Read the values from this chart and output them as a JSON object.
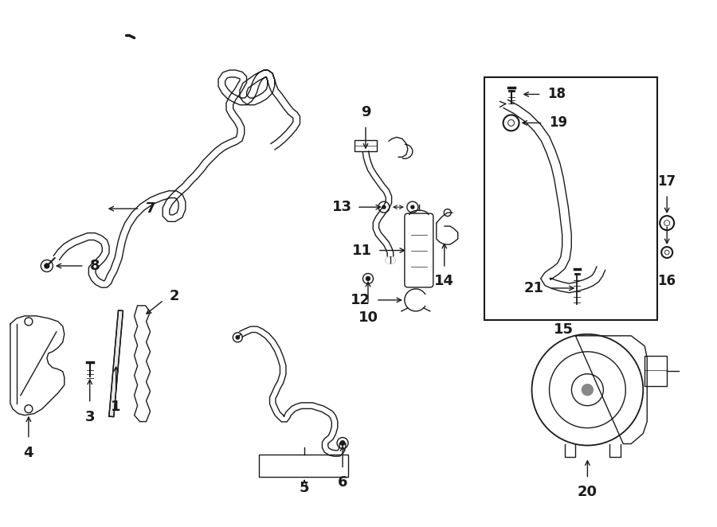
{
  "bg_color": "#ffffff",
  "line_color": "#1a1a1a",
  "label_color": "#000000",
  "fig_width": 9.0,
  "fig_height": 6.62,
  "dpi": 100
}
